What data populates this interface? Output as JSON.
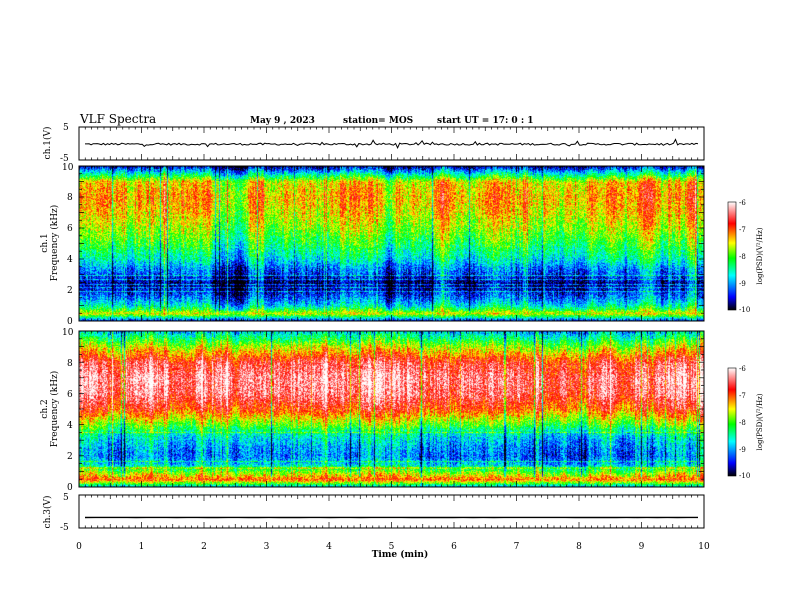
{
  "header": {
    "title": "VLF Spectra",
    "date": "May 9 , 2023",
    "station": "station= MOS",
    "start": "start UT = 17: 0 : 1"
  },
  "chart_data": [
    {
      "type": "line",
      "ylabel": "ch.1(V)",
      "ylim": [
        -5,
        5
      ],
      "yticks": [
        "5",
        "-5"
      ],
      "xlim": [
        0,
        10
      ],
      "series": [
        {
          "level": -0.2,
          "noise": 0.6
        }
      ]
    },
    {
      "type": "heatmap",
      "ylabel_top": "ch.1",
      "ylabel": "Frequency (kHz)",
      "ylim": [
        0,
        10
      ],
      "yticks": [
        "0",
        "2",
        "4",
        "6",
        "8",
        "10"
      ],
      "xlim": [
        0,
        10
      ],
      "colorbar": {
        "label": "log(PSD)(V²/Hz)",
        "ticks": [
          "-6",
          "-7",
          "-8",
          "-9",
          "-10"
        ],
        "range": [
          -10,
          -6
        ]
      },
      "profile_freq_khz": [
        0,
        0.5,
        1,
        1.5,
        2,
        2.5,
        3,
        3.5,
        4,
        5,
        6,
        7,
        8,
        9,
        9.5,
        10
      ],
      "profile_log_psd": [
        -9.6,
        -7.5,
        -8.6,
        -9.1,
        -9.5,
        -9.7,
        -9.3,
        -9.0,
        -8.6,
        -8.1,
        -7.7,
        -7.4,
        -7.2,
        -7.4,
        -8.5,
        -9.6
      ]
    },
    {
      "type": "heatmap",
      "ylabel_top": "ch.2",
      "ylabel": "Frequency (kHz)",
      "ylim": [
        0,
        10
      ],
      "yticks": [
        "0",
        "2",
        "4",
        "6",
        "8",
        "10"
      ],
      "xlim": [
        0,
        10
      ],
      "colorbar": {
        "label": "log(PSD)(V²/Hz)",
        "ticks": [
          "-6",
          "-7",
          "-8",
          "-9",
          "-10"
        ],
        "range": [
          -10,
          -6
        ]
      },
      "profile_freq_khz": [
        0,
        0.5,
        1,
        1.5,
        2,
        2.5,
        3,
        3.5,
        4,
        5,
        6,
        7,
        8,
        9,
        9.5,
        10
      ],
      "profile_log_psd": [
        -9.0,
        -7.0,
        -7.8,
        -8.8,
        -9.1,
        -9.0,
        -8.8,
        -8.5,
        -7.9,
        -6.9,
        -6.4,
        -6.3,
        -6.6,
        -7.6,
        -8.2,
        -8.8
      ]
    },
    {
      "type": "line",
      "ylabel": "ch.3(V)",
      "ylim": [
        -5,
        5
      ],
      "yticks": [
        "5",
        "-5"
      ],
      "xlim": [
        0,
        10
      ],
      "xlabel": "Time (min)",
      "xticks": [
        "0",
        "1",
        "2",
        "3",
        "4",
        "5",
        "6",
        "7",
        "8",
        "9",
        "10"
      ],
      "series": [
        {
          "level": -1.8,
          "noise": 0.05
        }
      ]
    }
  ]
}
